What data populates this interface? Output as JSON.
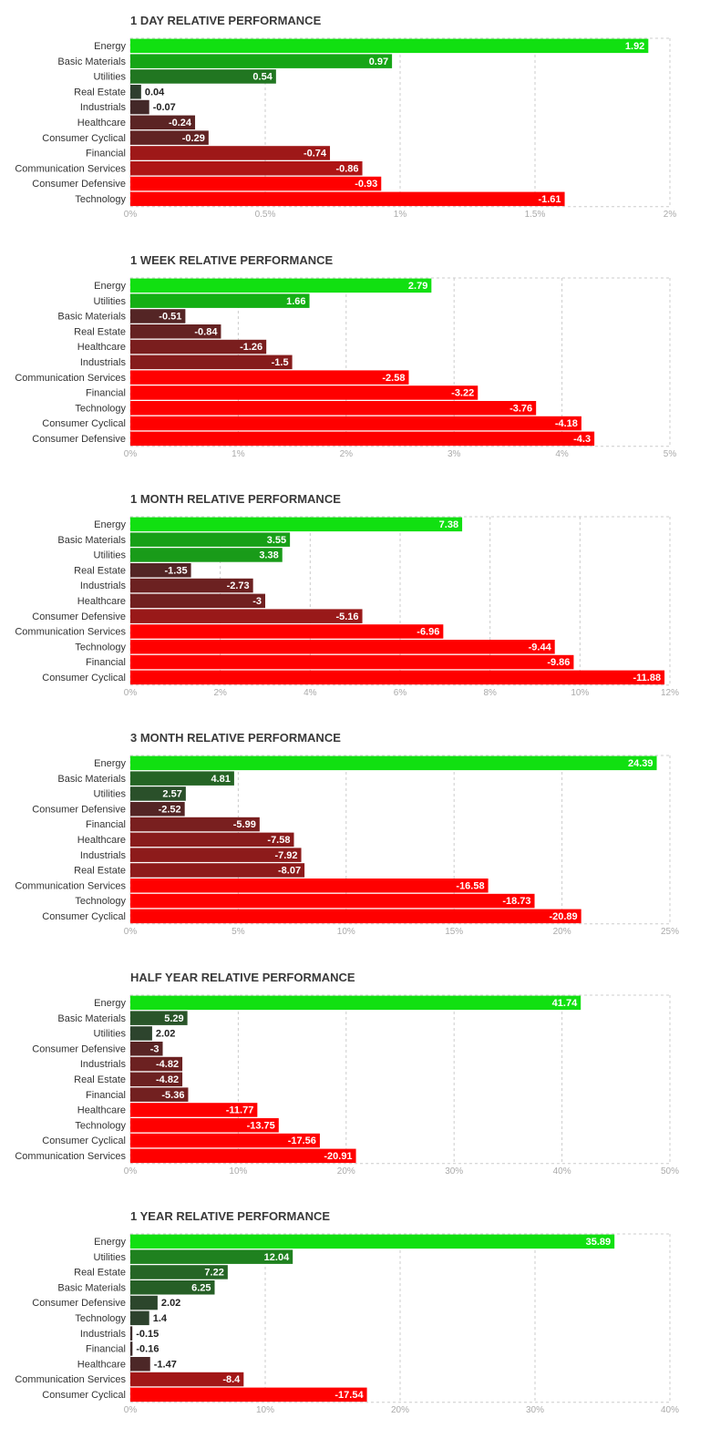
{
  "colors": {
    "grid": "#cccccc",
    "text": "#333333",
    "tick": "#aaaaaa",
    "title": "#3a3a3a"
  },
  "chart_data": [
    {
      "type": "bar",
      "orientation": "horizontal",
      "title": "1 DAY RELATIVE PERFORMANCE",
      "categories": [
        "Energy",
        "Basic Materials",
        "Utilities",
        "Real Estate",
        "Industrials",
        "Healthcare",
        "Consumer Cyclical",
        "Financial",
        "Communication Services",
        "Consumer Defensive",
        "Technology"
      ],
      "values": [
        1.92,
        0.97,
        0.54,
        0.04,
        -0.07,
        -0.24,
        -0.29,
        -0.74,
        -0.86,
        -0.93,
        -1.61
      ],
      "value_labels": [
        "1.92",
        "0.97",
        "0.54",
        "0.04",
        "-0.07",
        "-0.24",
        "-0.29",
        "-0.74",
        "-0.86",
        "-0.93",
        "-1.61"
      ],
      "bar_length": "absolute value",
      "xlim": [
        0,
        2
      ],
      "xticks": [
        "0%",
        "0.5%",
        "1%",
        "1.5%",
        "2%"
      ],
      "grid": true,
      "xlabel": "",
      "ylabel": ""
    },
    {
      "type": "bar",
      "orientation": "horizontal",
      "title": "1 WEEK RELATIVE PERFORMANCE",
      "categories": [
        "Energy",
        "Utilities",
        "Basic Materials",
        "Real Estate",
        "Healthcare",
        "Industrials",
        "Communication Services",
        "Financial",
        "Technology",
        "Consumer Cyclical",
        "Consumer Defensive"
      ],
      "values": [
        2.79,
        1.66,
        -0.51,
        -0.84,
        -1.26,
        -1.5,
        -2.58,
        -3.22,
        -3.76,
        -4.18,
        -4.3
      ],
      "value_labels": [
        "2.79",
        "1.66",
        "-0.51",
        "-0.84",
        "-1.26",
        "-1.5",
        "-2.58",
        "-3.22",
        "-3.76",
        "-4.18",
        "-4.3"
      ],
      "bar_length": "absolute value",
      "xlim": [
        0,
        5
      ],
      "xticks": [
        "0%",
        "1%",
        "2%",
        "3%",
        "4%",
        "5%"
      ],
      "grid": true,
      "xlabel": "",
      "ylabel": ""
    },
    {
      "type": "bar",
      "orientation": "horizontal",
      "title": "1 MONTH RELATIVE PERFORMANCE",
      "categories": [
        "Energy",
        "Basic Materials",
        "Utilities",
        "Real Estate",
        "Industrials",
        "Healthcare",
        "Consumer Defensive",
        "Communication Services",
        "Technology",
        "Financial",
        "Consumer Cyclical"
      ],
      "values": [
        7.38,
        3.55,
        3.38,
        -1.35,
        -2.73,
        -3,
        -5.16,
        -6.96,
        -9.44,
        -9.86,
        -11.88
      ],
      "value_labels": [
        "7.38",
        "3.55",
        "3.38",
        "-1.35",
        "-2.73",
        "-3",
        "-5.16",
        "-6.96",
        "-9.44",
        "-9.86",
        "-11.88"
      ],
      "bar_length": "absolute value",
      "xlim": [
        0,
        12
      ],
      "xticks": [
        "0%",
        "2%",
        "4%",
        "6%",
        "8%",
        "10%",
        "12%"
      ],
      "grid": true,
      "xlabel": "",
      "ylabel": ""
    },
    {
      "type": "bar",
      "orientation": "horizontal",
      "title": "3 MONTH RELATIVE PERFORMANCE",
      "categories": [
        "Energy",
        "Basic Materials",
        "Utilities",
        "Consumer Defensive",
        "Financial",
        "Healthcare",
        "Industrials",
        "Real Estate",
        "Communication Services",
        "Technology",
        "Consumer Cyclical"
      ],
      "values": [
        24.39,
        4.81,
        2.57,
        -2.52,
        -5.99,
        -7.58,
        -7.92,
        -8.07,
        -16.58,
        -18.73,
        -20.89
      ],
      "value_labels": [
        "24.39",
        "4.81",
        "2.57",
        "-2.52",
        "-5.99",
        "-7.58",
        "-7.92",
        "-8.07",
        "-16.58",
        "-18.73",
        "-20.89"
      ],
      "bar_length": "absolute value",
      "xlim": [
        0,
        25
      ],
      "xticks": [
        "0%",
        "5%",
        "10%",
        "15%",
        "20%",
        "25%"
      ],
      "grid": true,
      "xlabel": "",
      "ylabel": ""
    },
    {
      "type": "bar",
      "orientation": "horizontal",
      "title": "HALF YEAR RELATIVE PERFORMANCE",
      "categories": [
        "Energy",
        "Basic Materials",
        "Utilities",
        "Consumer Defensive",
        "Industrials",
        "Real Estate",
        "Financial",
        "Healthcare",
        "Technology",
        "Consumer Cyclical",
        "Communication Services"
      ],
      "values": [
        41.74,
        5.29,
        2.02,
        -3,
        -4.82,
        -4.82,
        -5.36,
        -11.77,
        -13.75,
        -17.56,
        -20.91
      ],
      "value_labels": [
        "41.74",
        "5.29",
        "2.02",
        "-3",
        "-4.82",
        "-4.82",
        "-5.36",
        "-11.77",
        "-13.75",
        "-17.56",
        "-20.91"
      ],
      "bar_length": "absolute value",
      "xlim": [
        0,
        50
      ],
      "xticks": [
        "0%",
        "10%",
        "20%",
        "30%",
        "40%",
        "50%"
      ],
      "grid": true,
      "xlabel": "",
      "ylabel": ""
    },
    {
      "type": "bar",
      "orientation": "horizontal",
      "title": "1 YEAR RELATIVE PERFORMANCE",
      "categories": [
        "Energy",
        "Utilities",
        "Real Estate",
        "Basic Materials",
        "Consumer Defensive",
        "Technology",
        "Industrials",
        "Financial",
        "Healthcare",
        "Communication Services",
        "Consumer Cyclical"
      ],
      "values": [
        35.89,
        12.04,
        7.22,
        6.25,
        2.02,
        1.4,
        -0.15,
        -0.16,
        -1.47,
        -8.4,
        -17.54
      ],
      "value_labels": [
        "35.89",
        "12.04",
        "7.22",
        "6.25",
        "2.02",
        "1.4",
        "-0.15",
        "-0.16",
        "-1.47",
        "-8.4",
        "-17.54"
      ],
      "bar_length": "absolute value",
      "xlim": [
        0,
        40
      ],
      "xticks": [
        "0%",
        "10%",
        "20%",
        "30%",
        "40%"
      ],
      "grid": true,
      "xlabel": "",
      "ylabel": ""
    }
  ]
}
